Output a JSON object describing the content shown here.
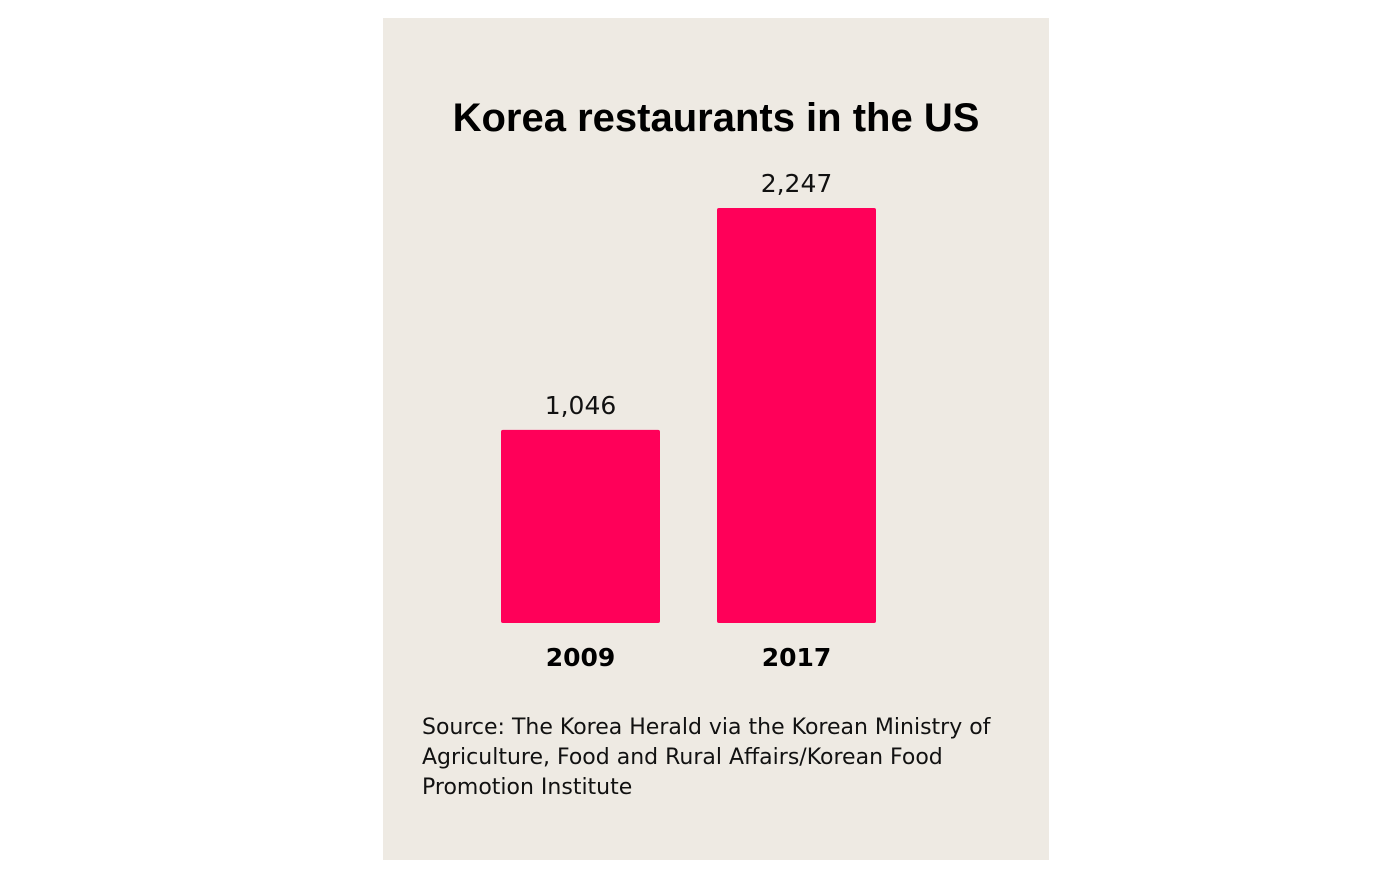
{
  "chart_data": {
    "type": "bar",
    "title": "Korea restaurants in the US",
    "categories": [
      "2009",
      "2017"
    ],
    "values": [
      1046,
      2247
    ],
    "value_labels": [
      "1,046",
      "2,247"
    ],
    "xlabel": "",
    "ylabel": "",
    "ylim": [
      0,
      2247
    ],
    "grid": false,
    "bar_color": "#ff0059",
    "background_color": "#eeeae3"
  },
  "source": "Source: The Korea Herald via the Korean Ministry of Agriculture, Food and Rural Affairs/Korean Food Promotion Institute"
}
